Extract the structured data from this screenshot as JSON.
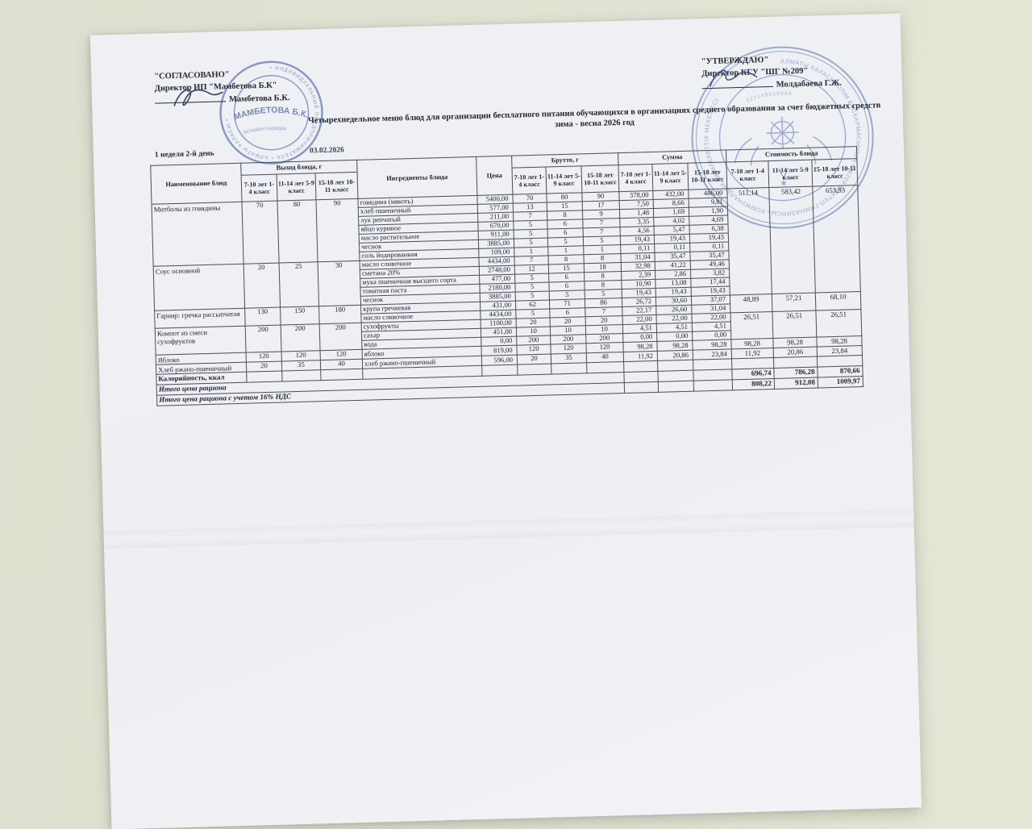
{
  "approval": {
    "left": {
      "title": "\"СОГЛАСОВАНО\"",
      "role": "Директор ИП \"Мамбетова Б.К\"",
      "name": "Мамбетова Б.К."
    },
    "right": {
      "title": "\"УТВЕРЖДАЮ\"",
      "role": "Директор КГУ \"ШГ №209\"",
      "name": "Молдабаева Г.Ж."
    }
  },
  "title": {
    "line1": "Четырехнедельное меню блюд для организации бесплатного питания обучающихся в организациях среднего образования за счет бюджетных средств",
    "line2": "зима - весна 2026 год"
  },
  "meta": {
    "week_day": "1 неделя 2-й день",
    "date": "03.02.2026"
  },
  "stamps": {
    "left": {
      "center": "МАМБЕТОВА Б.К.",
      "ring": "• ИНДИВИДУАЛЬНЫЙ ПРЕДПРИНИМАТЕЛЬ • АЛМАТЫ КАЛАСЫ •",
      "sub": "ЖСН/ИИН 54040340"
    },
    "right": {
      "ring": "АЛМАТЫ КАЛАСЫ БІЛІМ БАСКАРМАСЫНЫҢ «№209 МЕКТЕП-ГИМНАЗИЯСЫ» КОММУНАЛДЫК МЕМЛЕКЕТТІК МЕКЕМЕСІ",
      "number": "221149010454"
    }
  },
  "table": {
    "header": {
      "dish": "Наименование блюд",
      "yield_group": "Выход блюда, г",
      "ingredients": "Ингредиенты блюда",
      "price": "Цена",
      "brutto_group": "Брутто, г",
      "sum_group": "Сумма",
      "cost_group": "Стоимость блюда",
      "age_cols": [
        "7-10 лет 1-4 класс",
        "11-14 лет 5-9 класс",
        "15-18 лет 10-11 класс"
      ]
    },
    "groups": [
      {
        "dish": "Митболы из говядины",
        "yield": [
          "70",
          "80",
          "90"
        ],
        "cost": [
          "511,14",
          "583,42",
          "653,93"
        ],
        "cost_rows": 12,
        "rows": [
          {
            "ing": "говядина (мякоть)",
            "price": "5400,00",
            "brutto": [
              "70",
              "80",
              "90"
            ],
            "sum": [
              "378,00",
              "432,00",
              "486,00"
            ]
          },
          {
            "ing": "хлеб пшеничный",
            "price": "577,00",
            "brutto": [
              "13",
              "15",
              "17"
            ],
            "sum": [
              "7,50",
              "8,66",
              "9,81"
            ]
          },
          {
            "ing": "лук репчатый",
            "price": "211,00",
            "brutto": [
              "7",
              "8",
              "9"
            ],
            "sum": [
              "1,48",
              "1,69",
              "1,90"
            ]
          },
          {
            "ing": "яйцо куриное",
            "price": "670,00",
            "brutto": [
              "5",
              "6",
              "7"
            ],
            "sum": [
              "3,35",
              "4,02",
              "4,69"
            ]
          },
          {
            "ing": "масло растительное",
            "price": "911,00",
            "brutto": [
              "5",
              "6",
              "7"
            ],
            "sum": [
              "4,56",
              "5,47",
              "6,38"
            ]
          },
          {
            "ing": "чеснок",
            "price": "3885,00",
            "brutto": [
              "5",
              "5",
              "5"
            ],
            "sum": [
              "19,43",
              "19,43",
              "19,43"
            ]
          },
          {
            "ing": "соль йодированная",
            "price": "109,00",
            "brutto": [
              "1",
              "1",
              "1"
            ],
            "sum": [
              "0,11",
              "0,11",
              "0,11"
            ]
          }
        ]
      },
      {
        "dish": "Соус основной",
        "yield": [
          "20",
          "25",
          "30"
        ],
        "cost": null,
        "rows": [
          {
            "ing": "масло сливочное",
            "price": "4434,00",
            "brutto": [
              "7",
              "8",
              "8"
            ],
            "sum": [
              "31,04",
              "35,47",
              "35,47"
            ]
          },
          {
            "ing": "сметана 20%",
            "price": "2748,00",
            "brutto": [
              "12",
              "15",
              "18"
            ],
            "sum": [
              "32,98",
              "41,22",
              "49,46"
            ]
          },
          {
            "ing": "мука пшеничная высшего сорта",
            "price": "477,00",
            "brutto": [
              "5",
              "6",
              "8"
            ],
            "sum": [
              "2,39",
              "2,86",
              "3,82"
            ]
          },
          {
            "ing": "томатная паста",
            "price": "2180,00",
            "brutto": [
              "5",
              "6",
              "8"
            ],
            "sum": [
              "10,90",
              "13,08",
              "17,44"
            ]
          },
          {
            "ing": "чеснок",
            "price": "3885,00",
            "brutto": [
              "5",
              "5",
              "5"
            ],
            "sum": [
              "19,43",
              "19,43",
              "19,43"
            ]
          }
        ]
      },
      {
        "dish": "Гарнир: гречка рассыпчатая",
        "yield": [
          "130",
          "150",
          "180"
        ],
        "cost": [
          "48,89",
          "57,21",
          "68,10"
        ],
        "rows": [
          {
            "ing": "крупа гречневая",
            "price": "431,00",
            "brutto": [
              "62",
              "71",
              "86"
            ],
            "sum": [
              "26,72",
              "30,60",
              "37,07"
            ]
          },
          {
            "ing": "масло сливочное",
            "price": "4434,00",
            "brutto": [
              "5",
              "6",
              "7"
            ],
            "sum": [
              "22,17",
              "26,60",
              "31,04"
            ]
          }
        ]
      },
      {
        "dish": "Компот из смеси сухофруктов",
        "yield": [
          "200",
          "200",
          "200"
        ],
        "cost": [
          "26,51",
          "26,51",
          "26,51"
        ],
        "rows": [
          {
            "ing": "сухофрукты",
            "price": "1100,00",
            "brutto": [
              "20",
              "20",
              "20"
            ],
            "sum": [
              "22,00",
              "22,00",
              "22,00"
            ]
          },
          {
            "ing": "сахар",
            "price": "451,00",
            "brutto": [
              "10",
              "10",
              "10"
            ],
            "sum": [
              "4,51",
              "4,51",
              "4,51"
            ]
          },
          {
            "ing": "вода",
            "price": "0,00",
            "brutto": [
              "200",
              "200",
              "200"
            ],
            "sum": [
              "0,00",
              "0,00",
              "0,00"
            ]
          }
        ]
      },
      {
        "dish": "Яблоко",
        "yield": [
          "120",
          "120",
          "120"
        ],
        "cost": [
          "98,28",
          "98,28",
          "98,28"
        ],
        "rows": [
          {
            "ing": "яблоко",
            "price": "819,00",
            "brutto": [
              "120",
              "120",
              "120"
            ],
            "sum": [
              "98,28",
              "98,28",
              "98,28"
            ]
          }
        ]
      },
      {
        "dish": "Хлеб ржано-пшеничный",
        "yield": [
          "20",
          "35",
          "40"
        ],
        "cost": [
          "11,92",
          "20,86",
          "23,84"
        ],
        "rows": [
          {
            "ing": "хлеб ржано-пшеничный",
            "price": "596,00",
            "brutto": [
              "20",
              "35",
              "40"
            ],
            "sum": [
              "11,92",
              "20,86",
              "23,84"
            ]
          }
        ]
      }
    ],
    "calories_label": "Калорийность, ккал",
    "totals": [
      {
        "label": "Итого цена рациона",
        "values": [
          "696,74",
          "786,28",
          "870,66"
        ]
      },
      {
        "label": "Итого цена рациона с учетом 16% НДС",
        "values": [
          "808,22",
          "912,08",
          "1009,97"
        ]
      }
    ]
  }
}
